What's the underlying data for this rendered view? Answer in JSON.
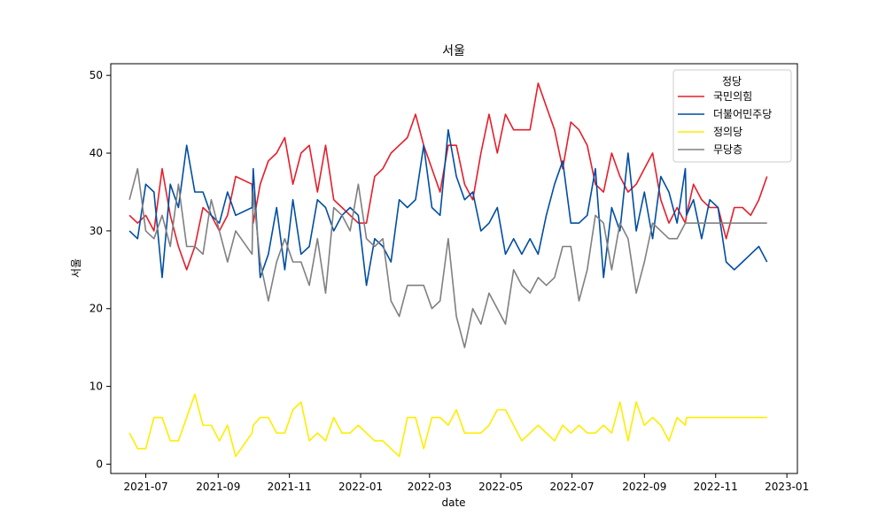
{
  "chart_data": {
    "type": "line",
    "title": "서울",
    "xlabel": "date",
    "ylabel": "서울",
    "x_range": [
      "2021-06-01",
      "2023-01-10"
    ],
    "ylim": [
      -1.2,
      51.5
    ],
    "x_ticks": [
      {
        "date": "2021-07-01",
        "label": "2021-07"
      },
      {
        "date": "2021-09-01",
        "label": "2021-09"
      },
      {
        "date": "2021-11-01",
        "label": "2021-11"
      },
      {
        "date": "2022-01-01",
        "label": "2022-01"
      },
      {
        "date": "2022-03-01",
        "label": "2022-03"
      },
      {
        "date": "2022-05-01",
        "label": "2022-05"
      },
      {
        "date": "2022-07-01",
        "label": "2022-07"
      },
      {
        "date": "2022-09-01",
        "label": "2022-09"
      },
      {
        "date": "2022-11-01",
        "label": "2022-11"
      },
      {
        "date": "2023-01-01",
        "label": "2023-01"
      }
    ],
    "y_ticks": [
      0,
      10,
      20,
      30,
      40,
      50
    ],
    "grid": false,
    "legend": {
      "title": "정당",
      "placement": "top-right"
    },
    "dates": [
      "2021-06-17",
      "2021-06-24",
      "2021-07-01",
      "2021-07-08",
      "2021-07-15",
      "2021-07-22",
      "2021-07-29",
      "2021-08-05",
      "2021-08-12",
      "2021-08-19",
      "2021-08-26",
      "2021-09-02",
      "2021-09-09",
      "2021-09-16",
      "2021-09-30",
      "2021-10-01",
      "2021-10-07",
      "2021-10-14",
      "2021-10-21",
      "2021-10-28",
      "2021-11-04",
      "2021-11-11",
      "2021-11-18",
      "2021-11-25",
      "2021-12-02",
      "2021-12-09",
      "2021-12-16",
      "2021-12-23",
      "2021-12-30",
      "2022-01-06",
      "2022-01-13",
      "2022-01-20",
      "2022-01-27",
      "2022-02-03",
      "2022-02-10",
      "2022-02-17",
      "2022-02-24",
      "2022-03-03",
      "2022-03-10",
      "2022-03-17",
      "2022-03-24",
      "2022-03-31",
      "2022-04-07",
      "2022-04-14",
      "2022-04-21",
      "2022-04-28",
      "2022-05-05",
      "2022-05-12",
      "2022-05-19",
      "2022-05-26",
      "2022-06-02",
      "2022-06-09",
      "2022-06-16",
      "2022-06-23",
      "2022-06-30",
      "2022-07-07",
      "2022-07-14",
      "2022-07-21",
      "2022-07-28",
      "2022-08-04",
      "2022-08-11",
      "2022-08-18",
      "2022-08-25",
      "2022-09-01",
      "2022-09-08",
      "2022-09-15",
      "2022-09-22",
      "2022-09-29",
      "2022-10-06",
      "2022-10-07",
      "2022-10-13",
      "2022-10-20",
      "2022-10-27",
      "2022-11-03",
      "2022-11-10",
      "2022-11-17",
      "2022-11-24",
      "2022-12-01",
      "2022-12-08",
      "2022-12-15"
    ],
    "series": [
      {
        "name": "국민의힘",
        "color": "#e61e2b",
        "values": [
          32,
          31,
          32,
          30,
          38,
          32,
          28,
          25,
          28,
          33,
          32,
          30,
          32,
          37,
          36,
          31,
          36,
          39,
          40,
          42,
          36,
          40,
          41,
          35,
          41,
          34,
          33,
          32,
          31,
          31,
          37,
          38,
          40,
          41,
          42,
          45,
          41,
          38,
          35,
          41,
          41,
          36,
          34,
          40,
          45,
          40,
          45,
          43,
          43,
          43,
          49,
          46,
          43,
          38,
          44,
          43,
          41,
          36,
          35,
          40,
          37,
          35,
          36,
          38,
          40,
          34,
          31,
          33,
          31,
          32,
          36,
          34,
          33,
          33,
          29,
          33,
          33,
          32,
          34,
          37
        ]
      },
      {
        "name": "더불어민주당",
        "color": "#004ea2",
        "values": [
          30,
          29,
          36,
          35,
          24,
          36,
          33,
          41,
          35,
          35,
          32,
          31,
          35,
          32,
          33,
          38,
          24,
          27,
          33,
          25,
          34,
          27,
          28,
          34,
          33,
          30,
          32,
          33,
          32,
          23,
          29,
          28,
          26,
          34,
          33,
          34,
          41,
          33,
          32,
          43,
          37,
          34,
          35,
          30,
          31,
          33,
          27,
          29,
          27,
          29,
          27,
          32,
          36,
          39,
          31,
          31,
          32,
          38,
          24,
          33,
          30,
          40,
          30,
          35,
          29,
          37,
          35,
          31,
          38,
          32,
          34,
          29,
          34,
          33,
          26,
          25,
          26,
          27,
          28,
          26
        ]
      },
      {
        "name": "정의당",
        "color": "#ffed00",
        "values": [
          4,
          2,
          2,
          6,
          6,
          3,
          3,
          6,
          9,
          5,
          5,
          3,
          5,
          1,
          4,
          5,
          6,
          6,
          4,
          4,
          7,
          8,
          3,
          4,
          3,
          6,
          4,
          4,
          5,
          4,
          3,
          3,
          2,
          1,
          6,
          6,
          2,
          6,
          6,
          5,
          7,
          4,
          4,
          4,
          5,
          7,
          7,
          5,
          3,
          4,
          5,
          4,
          3,
          5,
          4,
          5,
          4,
          4,
          5,
          4,
          8,
          3,
          8,
          5,
          6,
          5,
          3,
          6,
          5,
          6,
          6,
          6,
          6,
          6,
          6,
          6,
          6,
          6,
          6,
          6
        ]
      },
      {
        "name": "무당층",
        "color": "#808080",
        "values": [
          34,
          38,
          30,
          29,
          32,
          28,
          36,
          28,
          28,
          27,
          34,
          30,
          26,
          30,
          27,
          35,
          26,
          21,
          26,
          29,
          26,
          26,
          23,
          29,
          22,
          33,
          32,
          30,
          36,
          29,
          28,
          29,
          21,
          19,
          23,
          23,
          23,
          20,
          21,
          29,
          19,
          15,
          20,
          18,
          22,
          20,
          18,
          25,
          23,
          22,
          24,
          23,
          24,
          28,
          28,
          21,
          25,
          32,
          31,
          25,
          31,
          29,
          22,
          26,
          31,
          30,
          29,
          29,
          31,
          31,
          31,
          31,
          31,
          31,
          31,
          31,
          31,
          31,
          31,
          31
        ]
      }
    ]
  }
}
